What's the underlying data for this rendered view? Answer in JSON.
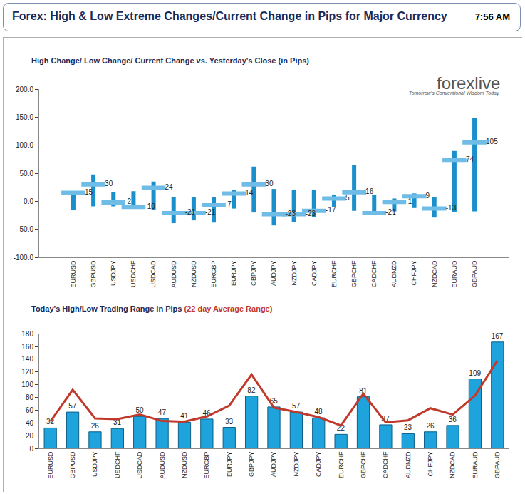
{
  "header": {
    "title": "Forex:  High & Low Extreme Changes/Current Change in Pips for Major Currency",
    "time": "7:56 AM",
    "logo": "forexlive",
    "tagline": "Tomorrow's Conventional Wisdom Today."
  },
  "chart_data": [
    {
      "type": "range",
      "title": "High Change/ Low Change/ Current Change vs. Yesterday's Close (in Pips)",
      "categories": [
        "EURUSD",
        "GBPUSD",
        "USDJPY",
        "USDCHF",
        "USDCAD",
        "AUDUSD",
        "NZDUSD",
        "EURGBP",
        "EURJPY",
        "GBPJPY",
        "AUDJPY",
        "NZDJPY",
        "CADJPY",
        "EURCHF",
        "GBPCHF",
        "CADCHF",
        "AUDNZD",
        "CHFJPY",
        "NZDCAD",
        "EURAUD",
        "GBPAUD"
      ],
      "values": [
        15,
        30,
        -2,
        -10,
        24,
        -21,
        -21,
        -7,
        14,
        30,
        -23,
        -23,
        -17,
        5,
        16,
        -21,
        -1,
        9,
        -13,
        74,
        105
      ],
      "high": [
        16,
        48,
        17,
        18,
        35,
        8,
        7,
        8,
        20,
        62,
        22,
        20,
        20,
        12,
        64,
        12,
        5,
        14,
        7,
        90,
        149
      ],
      "low": [
        -16,
        -9,
        -9,
        -13,
        -15,
        -39,
        -34,
        -38,
        -13,
        -20,
        -43,
        -37,
        -28,
        -10,
        -17,
        -25,
        -18,
        -12,
        -29,
        -19,
        -18
      ],
      "color": "#1a8fcc",
      "data_labels": true,
      "grid": false,
      "ylim": [
        -100,
        200
      ],
      "yticks": [
        {
          "value": -100,
          "label": "-100.0"
        },
        {
          "value": -50,
          "label": "-50.0"
        },
        {
          "value": 0,
          "label": "0.0"
        },
        {
          "value": 50,
          "label": "50.0"
        },
        {
          "value": 100,
          "label": "100.0"
        },
        {
          "value": 150,
          "label": "150.0"
        },
        {
          "value": 200,
          "label": "200.0"
        }
      ]
    },
    {
      "type": "bar",
      "title": "Today's High/Low Trading Range in Pips",
      "subtitle": "(22 day Average Range)",
      "categories": [
        "EURUSD",
        "GBPUSD",
        "USDJPY",
        "USDCHF",
        "USDCAD",
        "AUDUSD",
        "NZDUSD",
        "EURGBP",
        "EURJPY",
        "GBPJPY",
        "AUDJPY",
        "NZDJPY",
        "CADJPY",
        "EURCHF",
        "GBPCHF",
        "CADCHF",
        "AUDNZD",
        "CHFJPY",
        "NZDCAD",
        "EURAUD",
        "GBPAUD"
      ],
      "series": [
        {
          "type": "bar",
          "color": "#1fa3dc",
          "data_labels": true,
          "values": [
            32,
            57,
            26,
            31,
            50,
            47,
            41,
            46,
            33,
            82,
            65,
            57,
            48,
            22,
            81,
            37,
            23,
            26,
            36,
            109,
            167
          ]
        },
        {
          "type": "line",
          "color": "#c0392b",
          "values": [
            42,
            92,
            47,
            46,
            53,
            43,
            42,
            50,
            67,
            116,
            64,
            57,
            49,
            36,
            86,
            41,
            44,
            63,
            53,
            83,
            138
          ]
        }
      ],
      "grid": false,
      "ylim": [
        0,
        180
      ],
      "yticks": [
        0,
        20,
        40,
        60,
        80,
        100,
        120,
        140,
        160,
        180
      ]
    }
  ]
}
